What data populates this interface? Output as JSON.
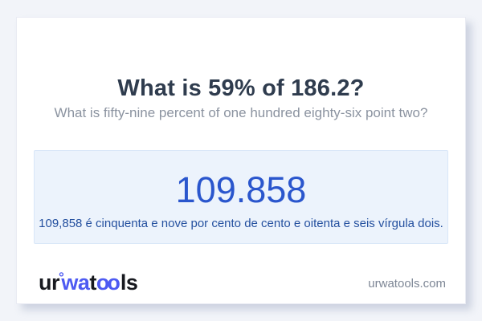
{
  "colors": {
    "page_background": "#f2f4f9",
    "card_background": "#ffffff",
    "title_text": "#2f3c4e",
    "subtitle_text": "#8b93a0",
    "result_box_background": "#ecf3fc",
    "result_box_border": "#d9e7f8",
    "result_value_text": "#2a56cd",
    "result_sentence_text": "#24509f",
    "logo_dark": "#17191f",
    "logo_blue": "#4d5af2",
    "domain_text": "#7d8695"
  },
  "card": {
    "title": "What is 59% of 186.2?",
    "subtitle": "What is fifty-nine percent of one hundred eighty-six point two?",
    "result": {
      "value": "109.858",
      "sentence": "109,858 é cinquenta e nove por cento de cento e oitenta e seis vírgula dois."
    },
    "footer": {
      "logo": {
        "ur": "ur",
        "ring": "°",
        "wa": "wa",
        "t": "t",
        "oo": "oo",
        "ls": "ls"
      },
      "domain": "urwatools.com"
    }
  }
}
